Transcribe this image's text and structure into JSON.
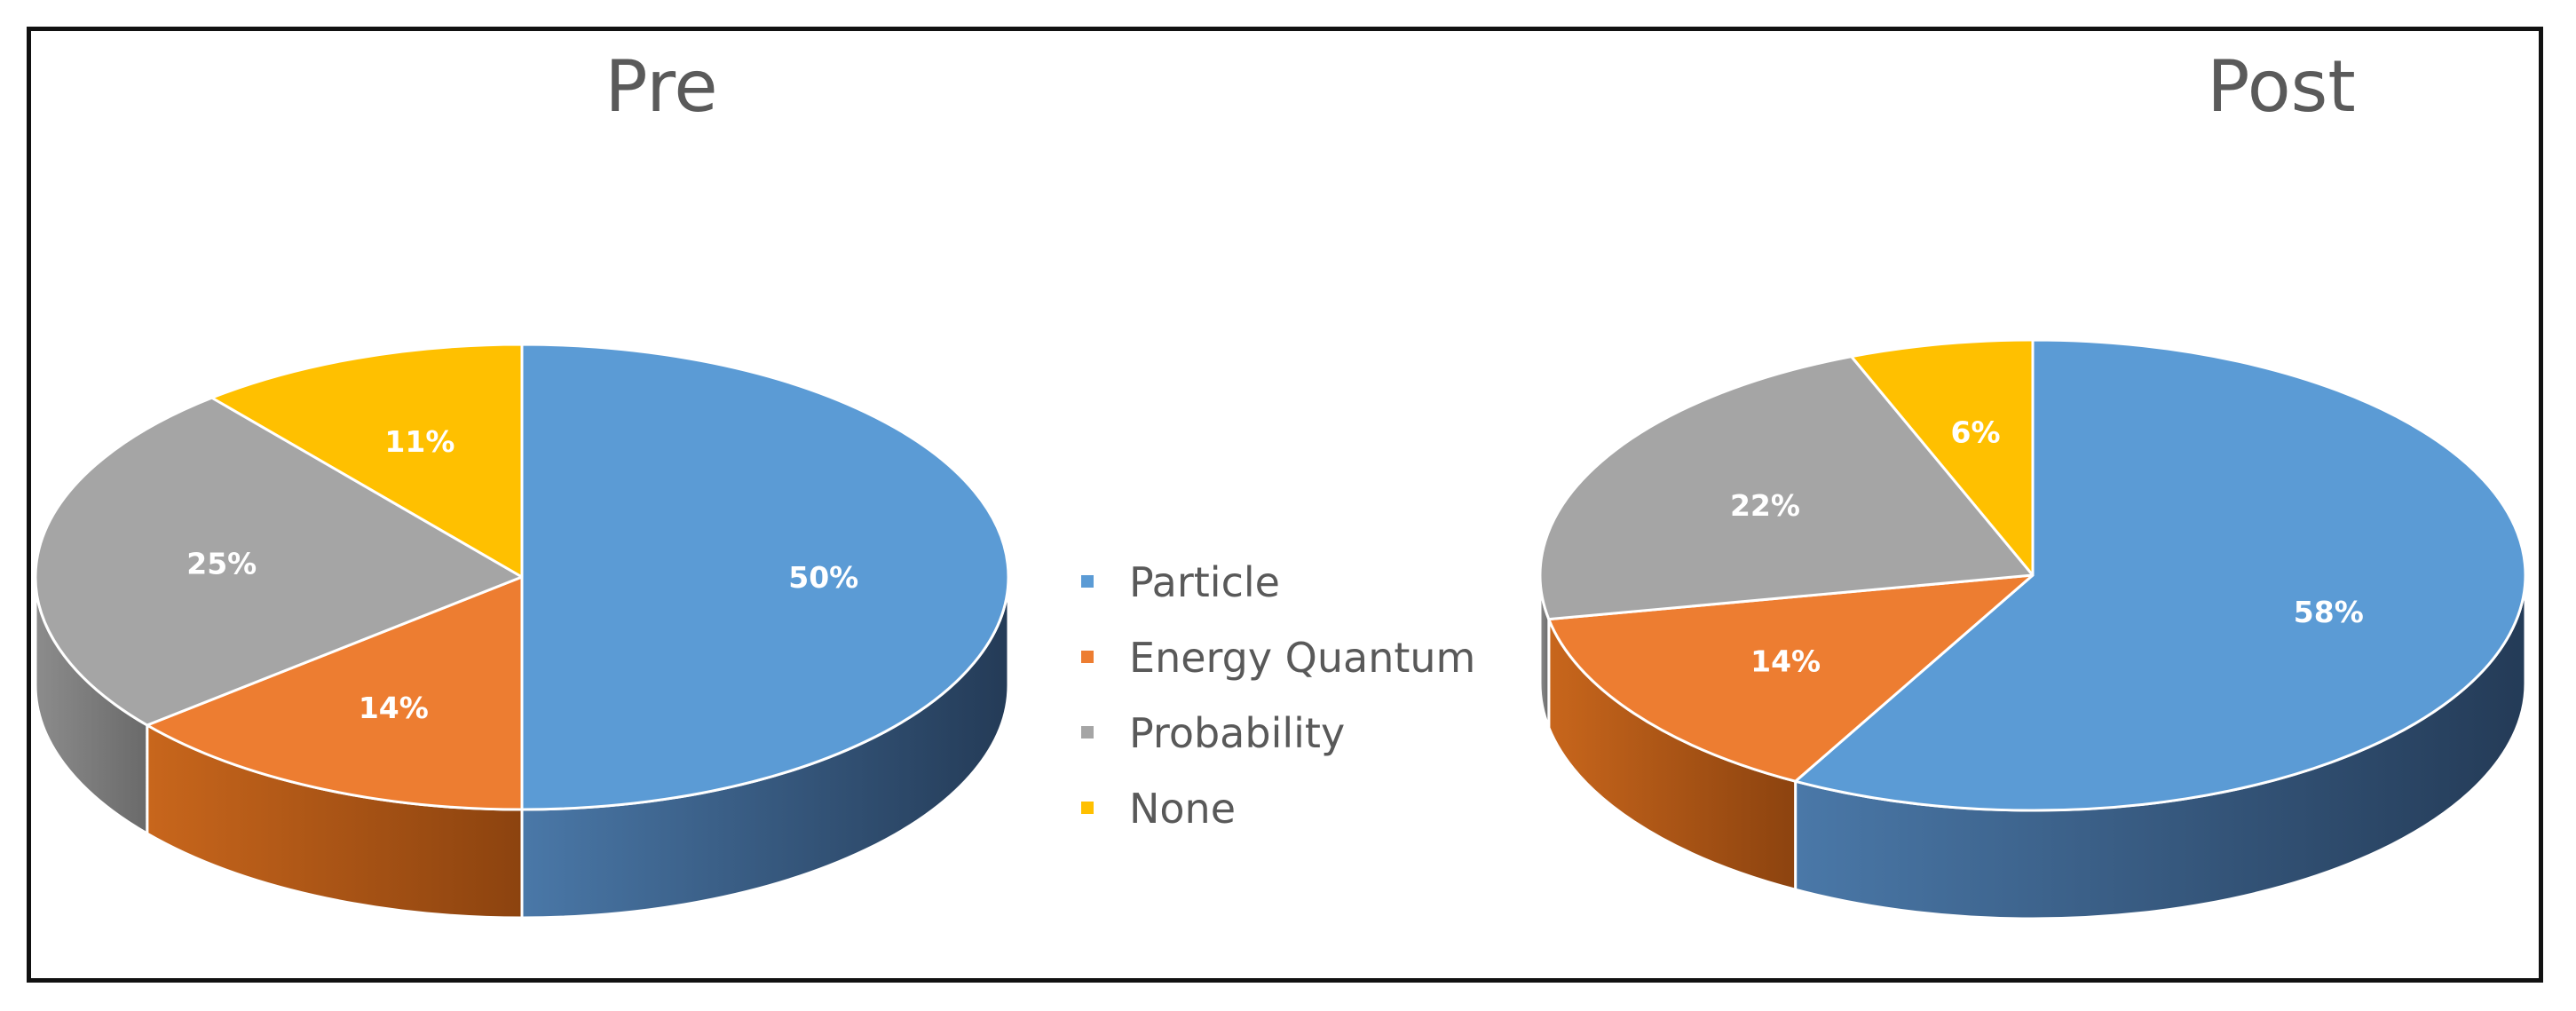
{
  "chart_data": [
    {
      "type": "pie",
      "title": "Pre",
      "categories": [
        "Particle",
        "Energy Quantum",
        "Probability",
        "None"
      ],
      "values": [
        50,
        14,
        25,
        11
      ],
      "labels": [
        "50%",
        "14%",
        "25%",
        "11%"
      ]
    },
    {
      "type": "pie",
      "title": "Post",
      "categories": [
        "Particle",
        "Energy Quantum",
        "Probability",
        "None"
      ],
      "values": [
        58,
        14,
        22,
        6
      ],
      "labels": [
        "58%",
        "14%",
        "22%",
        "6%"
      ]
    }
  ],
  "legend": {
    "placement": "center",
    "items": [
      {
        "label": "Particle",
        "color": "#5b9bd5"
      },
      {
        "label": "Energy Quantum",
        "color": "#ed7d31"
      },
      {
        "label": "Probability",
        "color": "#a5a5a5"
      },
      {
        "label": "None",
        "color": "#ffc000"
      }
    ]
  },
  "style": {
    "pie_style": "3d",
    "side_colors": [
      "#2e4a6b",
      "#b35a18",
      "#7a7a7a",
      "#b98a00"
    ],
    "edge_color": "#ffffff"
  }
}
